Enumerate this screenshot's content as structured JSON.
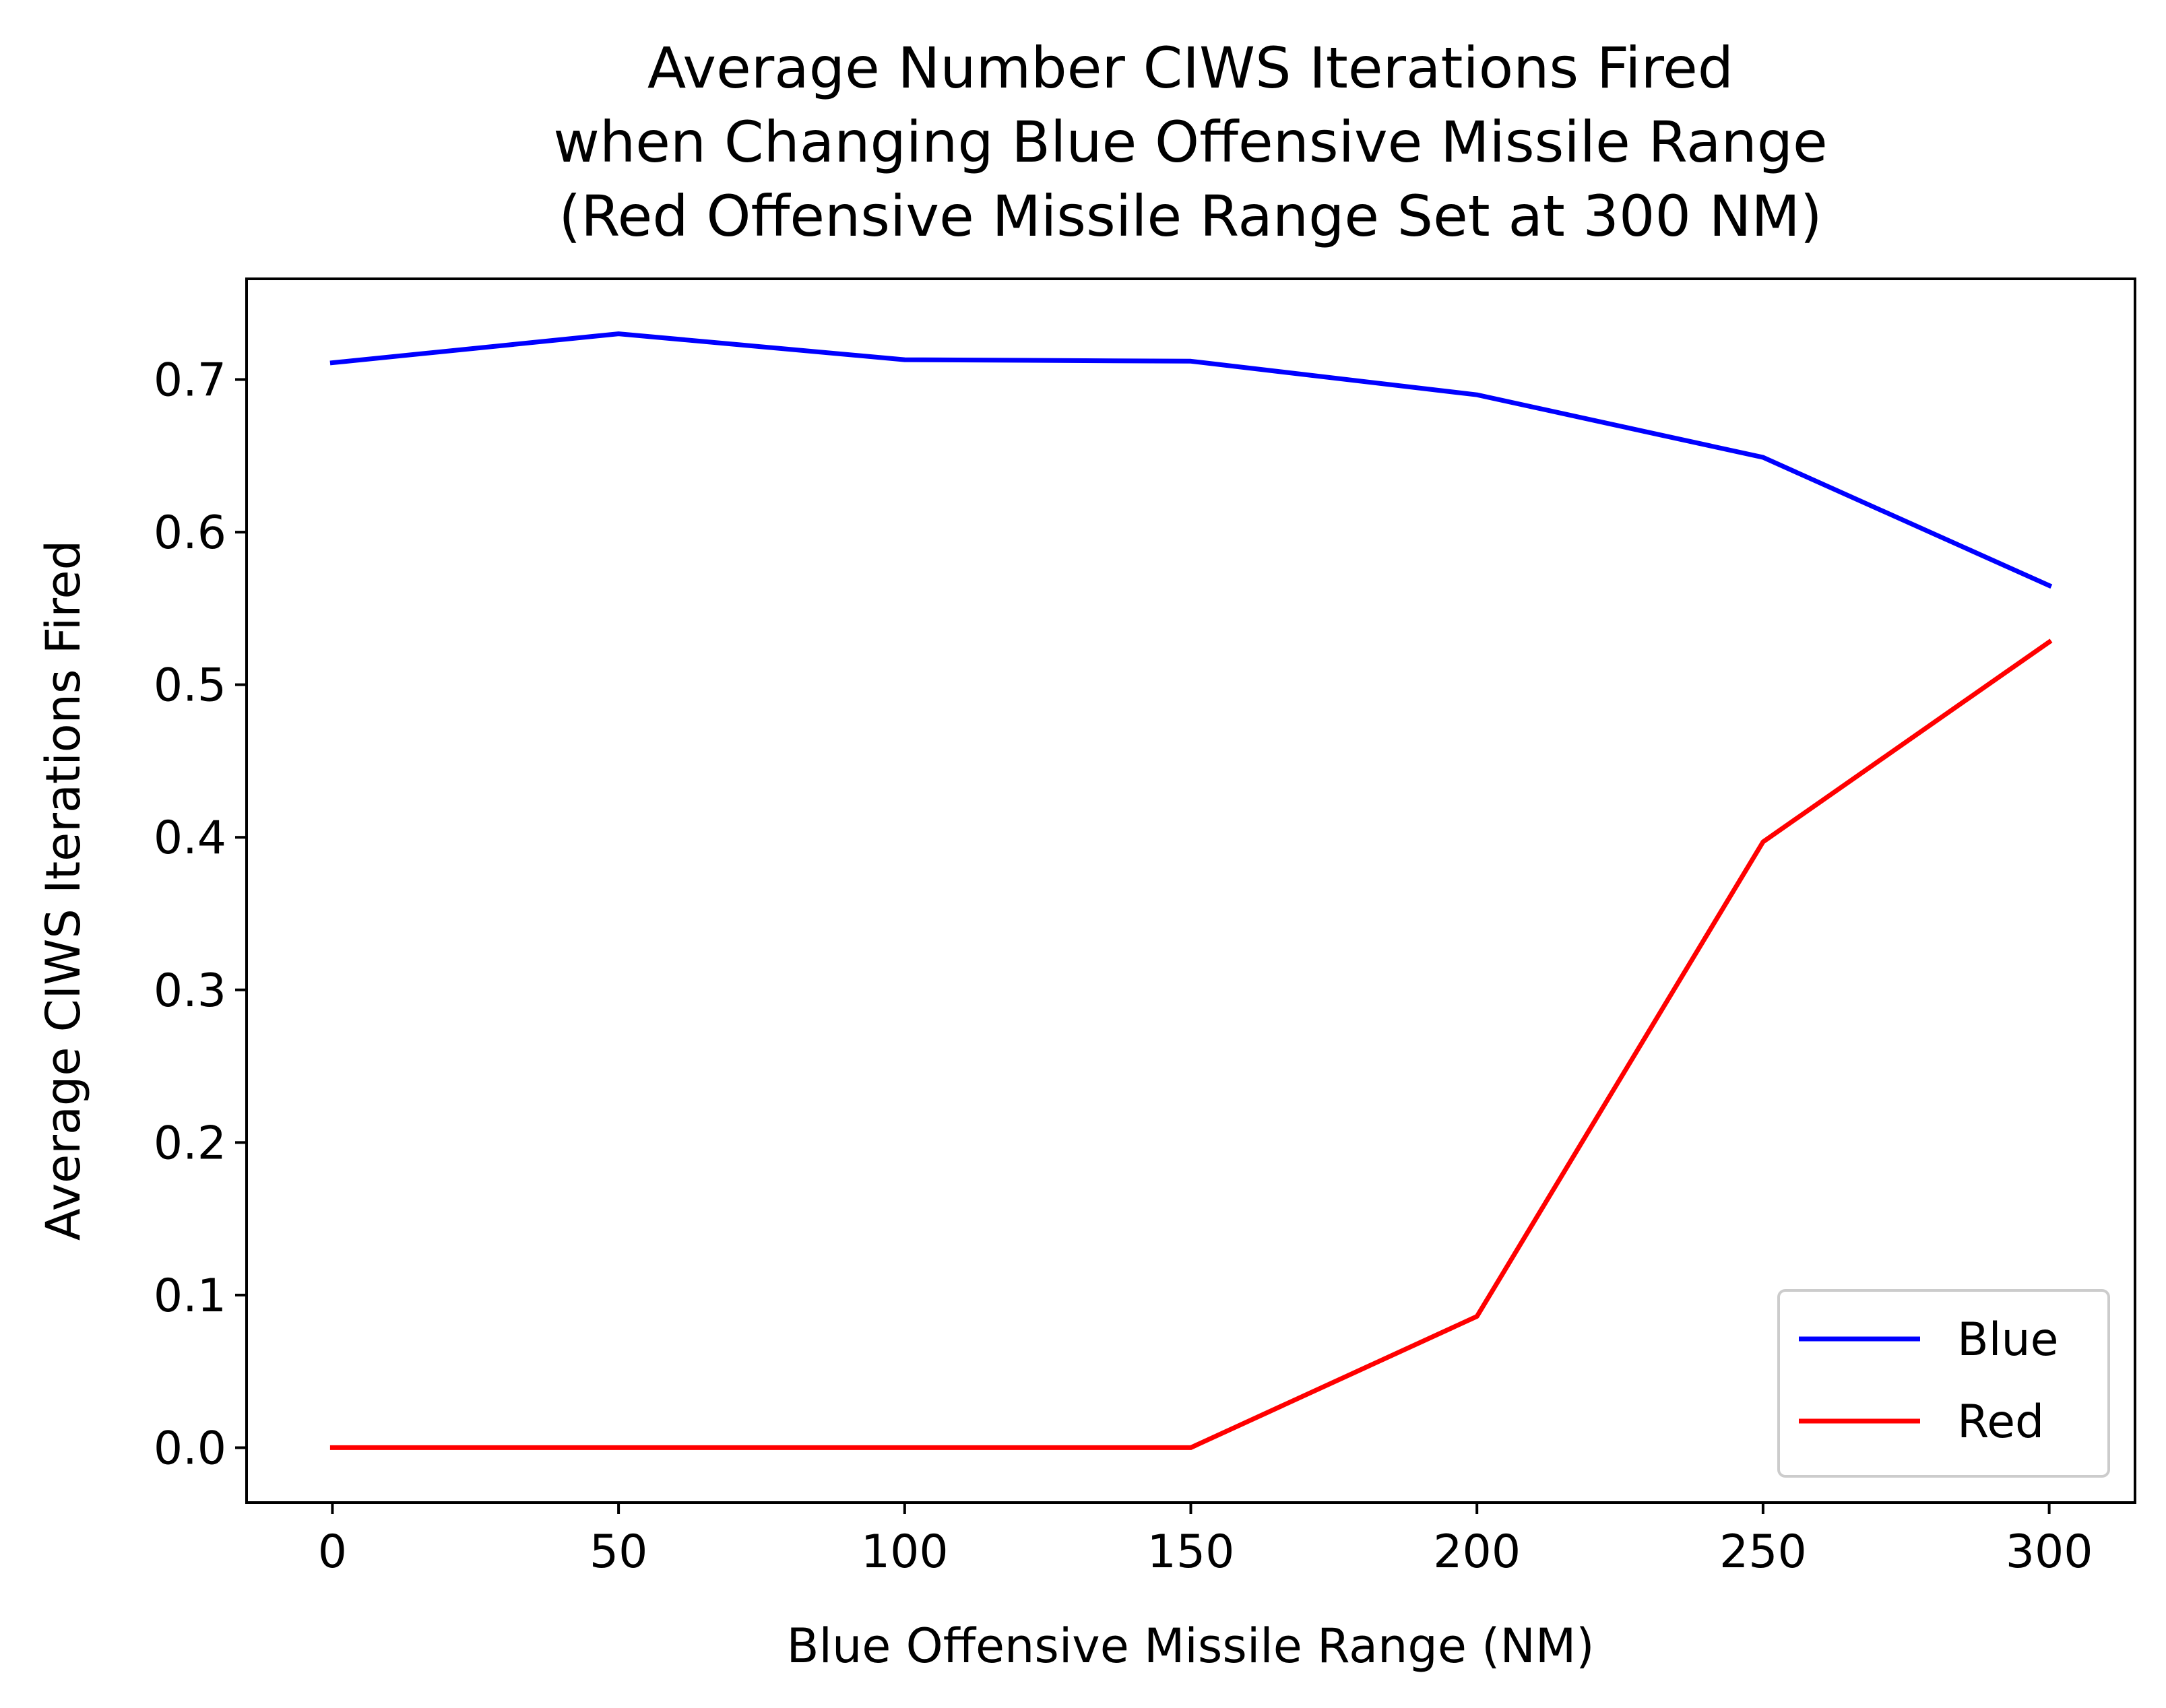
{
  "chart_data": {
    "type": "line",
    "title_lines": [
      "Average Number CIWS Iterations Fired",
      "when Changing Blue Offensive Missile Range",
      "(Red Offensive Missile Range Set at 300 NM)"
    ],
    "xlabel": "Blue Offensive Missile Range (NM)",
    "ylabel": "Average CIWS Iterations Fired",
    "x": [
      0,
      50,
      100,
      150,
      200,
      250,
      300
    ],
    "xticks": [
      "0",
      "50",
      "100",
      "150",
      "200",
      "250",
      "300"
    ],
    "yticks": [
      "0.0",
      "0.1",
      "0.2",
      "0.3",
      "0.4",
      "0.5",
      "0.6",
      "0.7"
    ],
    "xlim": [
      -15,
      315
    ],
    "ylim": [
      -0.036,
      0.766
    ],
    "grid": false,
    "legend_position": "lower-right",
    "series": [
      {
        "name": "Blue",
        "color": "#0000ff",
        "values": [
          0.711,
          0.73,
          0.713,
          0.712,
          0.69,
          0.649,
          0.565
        ]
      },
      {
        "name": "Red",
        "color": "#ff0000",
        "values": [
          0.0,
          0.0,
          0.0,
          0.0,
          0.086,
          0.397,
          0.528
        ]
      }
    ]
  }
}
